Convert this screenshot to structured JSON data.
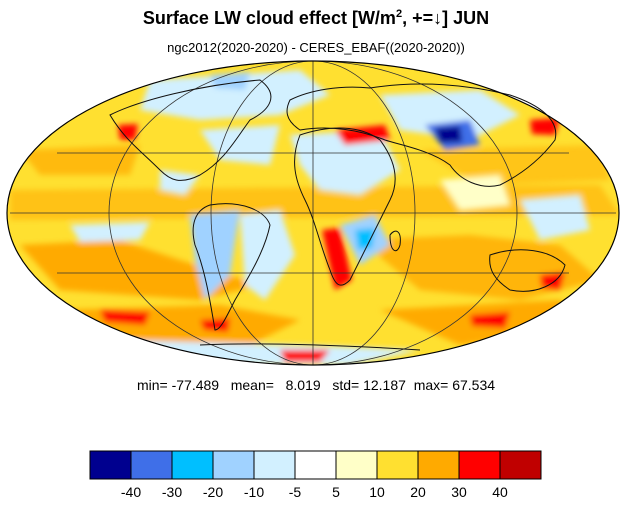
{
  "header": {
    "title_main": "Surface LW cloud effect [W/m",
    "title_sup": "2",
    "title_tail": ", +=↓]  JUN",
    "subtitle": "ngc2012(2020-2020) - CERES_EBAF((2020-2020))"
  },
  "stats": {
    "min_label": "min=",
    "min": "-77.489",
    "mean_label": "mean=",
    "mean": "8.019",
    "std_label": "std=",
    "std": "12.187",
    "max_label": "max=",
    "max": "67.534"
  },
  "colorbar": {
    "colors": [
      "#00008f",
      "#3f6fe8",
      "#00bfff",
      "#a0d2ff",
      "#d2f0ff",
      "#ffffff",
      "#ffffc8",
      "#ffe030",
      "#ffaa00",
      "#ff0000",
      "#c00000"
    ],
    "tick_labels": [
      "-40",
      "-30",
      "-20",
      "-10",
      "-5",
      "5",
      "10",
      "20",
      "30",
      "40"
    ]
  },
  "map": {
    "projection": "mollweide",
    "background_color": "#ffe030"
  }
}
